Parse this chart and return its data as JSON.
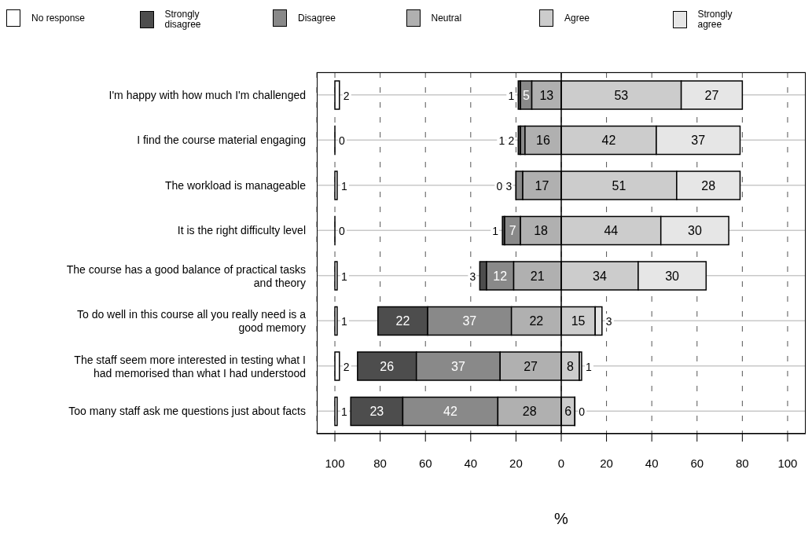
{
  "chart_data": {
    "type": "bar",
    "orientation": "horizontal",
    "xlabel": "%",
    "categories": [
      "I'm happy with how much I'm challenged",
      "I find the course material engaging",
      "The workload is manageable",
      "It is the right difficulty level",
      "The course has a good balance of practical tasks and theory",
      "To do well in this course all you really need is a good memory",
      "The staff seem more interested in testing what I had memorised than what I had understood",
      "Too many staff ask me questions just about facts"
    ],
    "series": [
      {
        "name": "No response",
        "color": "#ffffff",
        "base": [
          -100,
          -100,
          -100,
          -100,
          -100,
          -100,
          -100,
          -100
        ],
        "values": [
          2,
          0,
          1,
          0,
          1,
          1,
          2,
          1
        ]
      },
      {
        "name": "Strongly disagree",
        "color": "#4d4d4d",
        "base": [
          -19,
          -19,
          -20,
          -26,
          -36,
          -81,
          -90,
          -93
        ],
        "values": [
          1,
          1,
          0,
          1,
          3,
          22,
          26,
          23
        ]
      },
      {
        "name": "Disagree",
        "color": "#898989",
        "base": [
          -18,
          -18,
          -20,
          -25,
          -33,
          -59,
          -64,
          -70
        ],
        "values": [
          5,
          2,
          3,
          7,
          12,
          37,
          37,
          42
        ]
      },
      {
        "name": "Neutral",
        "color": "#b0b0b0",
        "base": [
          -13,
          -16,
          -17,
          -18,
          -21,
          -22,
          -27,
          -28
        ],
        "values": [
          13,
          16,
          17,
          18,
          21,
          22,
          27,
          28
        ]
      },
      {
        "name": "Agree",
        "color": "#cccccc",
        "base": [
          0,
          0,
          0,
          0,
          0,
          0,
          0,
          0
        ],
        "values": [
          53,
          42,
          51,
          44,
          34,
          15,
          8,
          6
        ]
      },
      {
        "name": "Strongly agree",
        "color": "#e6e6e6",
        "base": [
          53,
          42,
          51,
          44,
          34,
          15,
          8,
          6
        ],
        "values": [
          27,
          37,
          28,
          30,
          30,
          3,
          1,
          0
        ]
      }
    ],
    "data_labels": true,
    "xlim": [
      -108,
      108
    ],
    "xticks": [
      {
        "value": -100,
        "label": "100"
      },
      {
        "value": -80,
        "label": "80"
      },
      {
        "value": -60,
        "label": "60"
      },
      {
        "value": -40,
        "label": "40"
      },
      {
        "value": -20,
        "label": "20"
      },
      0,
      20,
      40,
      60,
      80,
      100
    ],
    "ref_lines": [
      {
        "axis": "x",
        "value": 0,
        "color": "#000000"
      }
    ],
    "grid": true,
    "legend": "top"
  }
}
